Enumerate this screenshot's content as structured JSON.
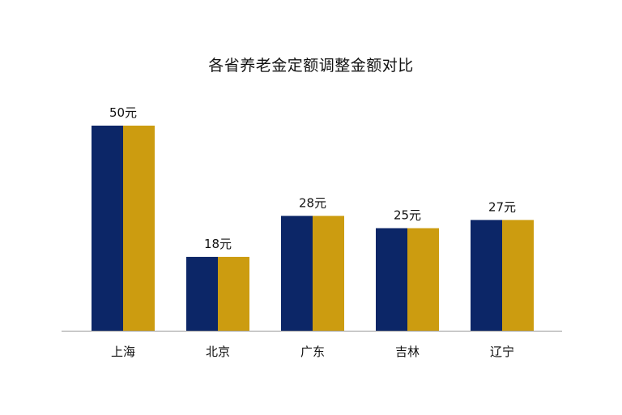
{
  "chart_data": {
    "type": "bar",
    "title": "各省养老金定额调整金额对比",
    "categories": [
      "上海",
      "北京",
      "广东",
      "吉林",
      "辽宁"
    ],
    "values": [
      50,
      18,
      28,
      25,
      27
    ],
    "data_labels": [
      "50元",
      "18元",
      "28元",
      "25元",
      "27元"
    ],
    "xlabel": "",
    "ylabel": "",
    "ylim": [
      0,
      50
    ],
    "grid": false,
    "legend": "none",
    "bar_style": "two-tone",
    "colors": {
      "left_half": "#0c2667",
      "right_half": "#cc9c10",
      "axis": "#999999",
      "text": "#111111"
    }
  }
}
